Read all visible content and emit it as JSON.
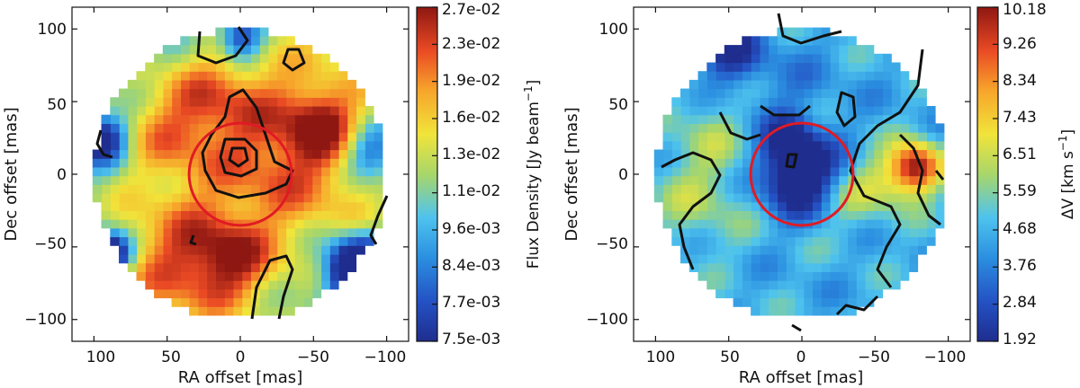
{
  "chart_data": [
    {
      "type": "heatmap",
      "title": "",
      "xlabel": "RA offset [mas]",
      "ylabel": "Dec offset [mas]",
      "xlim": [
        115,
        -115
      ],
      "ylim": [
        -115,
        115
      ],
      "xticks": [
        100,
        50,
        0,
        -50,
        -100
      ],
      "yticks": [
        100,
        50,
        0,
        -50,
        -100
      ],
      "xtick_labels": [
        "100",
        "50",
        "0",
        "−50",
        "−100"
      ],
      "ytick_labels": [
        "100",
        "50",
        "0",
        "−50",
        "−100"
      ],
      "colorbar": {
        "label": "Flux Density [Jy beam⁻¹]",
        "label_main": "Flux Density [Jy beam",
        "label_exp": "−1",
        "label_end": "]",
        "ticks": [
          "7.5e-03",
          "7.7e-03",
          "8.4e-03",
          "9.6e-03",
          "1.1e-02",
          "1.3e-02",
          "1.6e-02",
          "1.9e-02",
          "2.3e-02",
          "2.7e-02"
        ]
      },
      "disk_radius": 100,
      "circle": {
        "x": 0,
        "y": 0,
        "r": 35,
        "color": "#e01b24"
      },
      "blobs": [
        {
          "x": -35,
          "y": 20,
          "s": 45,
          "a": 0.45
        },
        {
          "x": 40,
          "y": -60,
          "s": 32,
          "a": 0.4
        },
        {
          "x": 5,
          "y": -60,
          "s": 20,
          "a": 0.3
        },
        {
          "x": 50,
          "y": 30,
          "s": 25,
          "a": 0.25
        },
        {
          "x": -55,
          "y": 35,
          "s": 15,
          "a": 0.25
        },
        {
          "x": 20,
          "y": 55,
          "s": 20,
          "a": 0.2
        },
        {
          "x": -80,
          "y": -65,
          "s": 15,
          "a": -0.95
        },
        {
          "x": 90,
          "y": -55,
          "s": 10,
          "a": -0.85
        },
        {
          "x": 0,
          "y": 95,
          "s": 10,
          "a": -0.5
        },
        {
          "x": 95,
          "y": 25,
          "s": 12,
          "a": -0.6
        },
        {
          "x": -90,
          "y": 15,
          "s": 14,
          "a": -0.45
        }
      ],
      "base": 0.45
    },
    {
      "type": "heatmap",
      "title": "",
      "xlabel": "RA offset [mas]",
      "ylabel": "Dec offset [mas]",
      "xlim": [
        115,
        -115
      ],
      "ylim": [
        -115,
        115
      ],
      "xticks": [
        100,
        50,
        0,
        -50,
        -100
      ],
      "yticks": [
        100,
        50,
        0,
        -50,
        -100
      ],
      "xtick_labels": [
        "100",
        "50",
        "0",
        "−50",
        "−100"
      ],
      "ytick_labels": [
        "100",
        "50",
        "0",
        "−50",
        "−100"
      ],
      "colorbar": {
        "label": "ΔV [km s⁻¹]",
        "label_main": "ΔV [km s",
        "label_exp": "−1",
        "label_end": "]",
        "ticks": [
          "1.92",
          "2.84",
          "3.76",
          "4.68",
          "5.59",
          "6.51",
          "7.43",
          "8.34",
          "9.26",
          "10.18"
        ]
      },
      "disk_radius": 100,
      "circle": {
        "x": 0,
        "y": 0,
        "r": 35,
        "color": "#e01b24"
      },
      "blobs": [
        {
          "x": 2,
          "y": 0,
          "s": 18,
          "a": -0.55
        },
        {
          "x": 10,
          "y": 25,
          "s": 10,
          "a": -0.25
        },
        {
          "x": -78,
          "y": 5,
          "s": 12,
          "a": 0.65
        },
        {
          "x": -60,
          "y": -5,
          "s": 15,
          "a": 0.2
        },
        {
          "x": 60,
          "y": 30,
          "s": 25,
          "a": 0.15
        },
        {
          "x": 70,
          "y": -20,
          "s": 25,
          "a": 0.15
        },
        {
          "x": -30,
          "y": -15,
          "s": 18,
          "a": 0.15
        },
        {
          "x": 50,
          "y": 85,
          "s": 15,
          "a": -0.3
        },
        {
          "x": 20,
          "y": 50,
          "s": 30,
          "a": -0.1
        }
      ],
      "base": 0.32
    }
  ]
}
